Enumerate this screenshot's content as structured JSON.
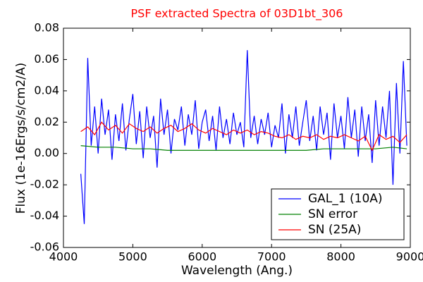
{
  "chart_data": {
    "type": "line",
    "title": "PSF extracted Spectra of 03D1bt_306",
    "xlabel": "Wavelength (Ang.)",
    "ylabel": "Flux (1e-16Ergs/s/cm2/A)",
    "xlim": [
      4000,
      9000
    ],
    "xticks": [
      4000,
      5000,
      6000,
      7000,
      8000,
      9000
    ],
    "ylim": [
      -0.06,
      0.08
    ],
    "yticks": [
      -0.06,
      -0.04,
      -0.02,
      {
        "value": 0,
        "label": "0.00"
      },
      0.02,
      0.04,
      0.06,
      0.08
    ],
    "legend": "lower right",
    "series": [
      {
        "name": "GAL_1 (10A)",
        "color": "#0000ff",
        "x": [
          4250,
          4300,
          4350,
          4400,
          4450,
          4500,
          4550,
          4600,
          4650,
          4700,
          4750,
          4800,
          4850,
          4900,
          4950,
          5000,
          5050,
          5100,
          5150,
          5200,
          5250,
          5300,
          5350,
          5400,
          5450,
          5500,
          5550,
          5600,
          5650,
          5700,
          5750,
          5800,
          5850,
          5900,
          5950,
          6000,
          6050,
          6100,
          6150,
          6200,
          6250,
          6300,
          6350,
          6400,
          6450,
          6500,
          6550,
          6600,
          6650,
          6700,
          6750,
          6800,
          6850,
          6900,
          6950,
          7000,
          7050,
          7100,
          7150,
          7200,
          7250,
          7300,
          7350,
          7400,
          7450,
          7500,
          7550,
          7600,
          7650,
          7700,
          7750,
          7800,
          7850,
          7900,
          7950,
          8000,
          8050,
          8100,
          8150,
          8200,
          8250,
          8300,
          8350,
          8400,
          8450,
          8500,
          8550,
          8600,
          8650,
          8700,
          8750,
          8800,
          8850,
          8900,
          8950
        ],
        "values": [
          -0.013,
          -0.045,
          0.061,
          0.005,
          0.03,
          0.0,
          0.035,
          0.012,
          0.028,
          -0.004,
          0.025,
          0.008,
          0.032,
          0.002,
          0.022,
          0.038,
          0.006,
          0.027,
          -0.003,
          0.03,
          0.01,
          0.024,
          -0.009,
          0.035,
          0.012,
          0.028,
          0.0,
          0.022,
          0.015,
          0.03,
          0.005,
          0.025,
          0.012,
          0.034,
          0.003,
          0.02,
          0.028,
          0.008,
          0.024,
          0.002,
          0.03,
          0.01,
          0.022,
          0.006,
          0.026,
          0.012,
          0.02,
          0.004,
          0.066,
          0.01,
          0.024,
          0.006,
          0.022,
          0.012,
          0.026,
          0.004,
          0.018,
          0.01,
          0.032,
          0.0,
          0.025,
          0.01,
          0.03,
          0.005,
          0.02,
          0.034,
          0.008,
          0.024,
          0.002,
          0.03,
          0.012,
          0.026,
          -0.004,
          0.032,
          0.01,
          0.024,
          0.003,
          0.036,
          0.01,
          0.028,
          -0.002,
          0.03,
          0.008,
          0.025,
          -0.006,
          0.034,
          0.005,
          0.03,
          0.01,
          0.04,
          -0.02,
          0.045,
          0.0,
          0.059,
          0.005
        ]
      },
      {
        "name": "SN error",
        "color": "#008000",
        "x": [
          4250,
          4500,
          4750,
          5000,
          5250,
          5500,
          5750,
          6000,
          6250,
          6500,
          6750,
          7000,
          7250,
          7500,
          7750,
          8000,
          8250,
          8500,
          8750,
          8950
        ],
        "values": [
          0.005,
          0.004,
          0.004,
          0.003,
          0.003,
          0.002,
          0.002,
          0.002,
          0.002,
          0.002,
          0.002,
          0.002,
          0.002,
          0.002,
          0.003,
          0.003,
          0.003,
          0.003,
          0.004,
          0.003
        ]
      },
      {
        "name": "SN (25A)",
        "color": "#ff0000",
        "x": [
          4250,
          4350,
          4450,
          4550,
          4650,
          4750,
          4850,
          4950,
          5050,
          5150,
          5250,
          5350,
          5450,
          5550,
          5650,
          5750,
          5850,
          5950,
          6050,
          6150,
          6250,
          6350,
          6450,
          6550,
          6650,
          6750,
          6850,
          6950,
          7050,
          7150,
          7250,
          7350,
          7450,
          7550,
          7650,
          7750,
          7850,
          7950,
          8050,
          8150,
          8250,
          8350,
          8450,
          8550,
          8650,
          8750,
          8850,
          8950
        ],
        "values": [
          0.014,
          0.017,
          0.012,
          0.02,
          0.015,
          0.018,
          0.013,
          0.019,
          0.016,
          0.014,
          0.017,
          0.013,
          0.016,
          0.018,
          0.014,
          0.016,
          0.019,
          0.015,
          0.013,
          0.016,
          0.014,
          0.012,
          0.015,
          0.013,
          0.015,
          0.012,
          0.014,
          0.013,
          0.011,
          0.01,
          0.012,
          0.009,
          0.011,
          0.01,
          0.012,
          0.009,
          0.011,
          0.01,
          0.012,
          0.01,
          0.008,
          0.011,
          0.002,
          0.012,
          0.009,
          0.011,
          0.007,
          0.012
        ]
      }
    ]
  }
}
